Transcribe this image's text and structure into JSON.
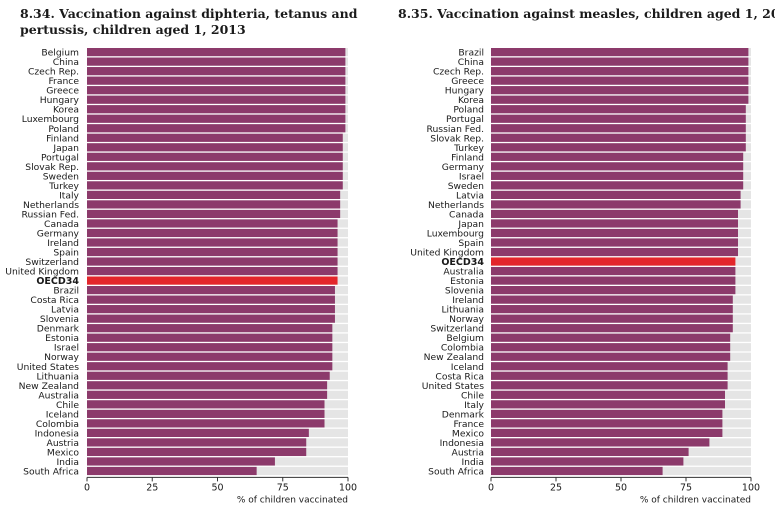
{
  "chart_data": [
    {
      "type": "bar",
      "orientation": "horizontal",
      "title_lines": [
        "8.34.  Vaccination against diphteria, tetanus and",
        "pertussis, children aged 1, 2013"
      ],
      "xlabel": "% of children vaccinated",
      "xlim": [
        0,
        100
      ],
      "xticks": [
        "0",
        "25",
        "50",
        "75",
        "100"
      ],
      "highlight_category": "OECD34",
      "colors": {
        "bar": "#8c3a6b",
        "highlight": "#e3262b",
        "track": "#e5e5e5"
      },
      "categories": [
        "Belgium",
        "China",
        "Czech Rep.",
        "France",
        "Greece",
        "Hungary",
        "Korea",
        "Luxembourg",
        "Poland",
        "Finland",
        "Japan",
        "Portugal",
        "Slovak Rep.",
        "Sweden",
        "Turkey",
        "Italy",
        "Netherlands",
        "Russian Fed.",
        "Canada",
        "Germany",
        "Ireland",
        "Spain",
        "Switzerland",
        "United Kingdom",
        "OECD34",
        "Brazil",
        "Costa Rica",
        "Latvia",
        "Slovenia",
        "Denmark",
        "Estonia",
        "Israel",
        "Norway",
        "United States",
        "Lithuania",
        "New Zealand",
        "Australia",
        "Chile",
        "Iceland",
        "Colombia",
        "Indonesia",
        "Austria",
        "Mexico",
        "India",
        "South Africa"
      ],
      "values": [
        99,
        99,
        99,
        99,
        99,
        99,
        99,
        99,
        99,
        98,
        98,
        98,
        98,
        98,
        98,
        97,
        97,
        97,
        96,
        96,
        96,
        96,
        96,
        96,
        96,
        95,
        95,
        95,
        95,
        94,
        94,
        94,
        94,
        94,
        93,
        92,
        92,
        91,
        91,
        91,
        85,
        84,
        84,
        72,
        65
      ]
    },
    {
      "type": "bar",
      "orientation": "horizontal",
      "title_lines": [
        "8.35.  Vaccination against measles, children aged 1, 2013"
      ],
      "xlabel": "% of children vaccinated",
      "xlim": [
        0,
        100
      ],
      "xticks": [
        "0",
        "25",
        "50",
        "75",
        "100"
      ],
      "highlight_category": "OECD34",
      "colors": {
        "bar": "#8c3a6b",
        "highlight": "#e3262b",
        "track": "#e5e5e5"
      },
      "categories": [
        "Brazil",
        "China",
        "Czech Rep.",
        "Greece",
        "Hungary",
        "Korea",
        "Poland",
        "Portugal",
        "Russian Fed.",
        "Slovak Rep.",
        "Turkey",
        "Finland",
        "Germany",
        "Israel",
        "Sweden",
        "Latvia",
        "Netherlands",
        "Canada",
        "Japan",
        "Luxembourg",
        "Spain",
        "United Kingdom",
        "OECD34",
        "Australia",
        "Estonia",
        "Slovenia",
        "Ireland",
        "Lithuania",
        "Norway",
        "Switzerland",
        "Belgium",
        "Colombia",
        "New Zealand",
        "Iceland",
        "Costa Rica",
        "United States",
        "Chile",
        "Italy",
        "Denmark",
        "France",
        "Mexico",
        "Indonesia",
        "Austria",
        "India",
        "South Africa"
      ],
      "values": [
        99,
        99,
        99,
        99,
        99,
        99,
        98,
        98,
        98,
        98,
        98,
        97,
        97,
        97,
        97,
        96,
        96,
        95,
        95,
        95,
        95,
        95,
        94,
        94,
        94,
        94,
        93,
        93,
        93,
        93,
        92,
        92,
        92,
        91,
        91,
        91,
        90,
        90,
        89,
        89,
        89,
        84,
        76,
        74,
        66
      ]
    }
  ]
}
